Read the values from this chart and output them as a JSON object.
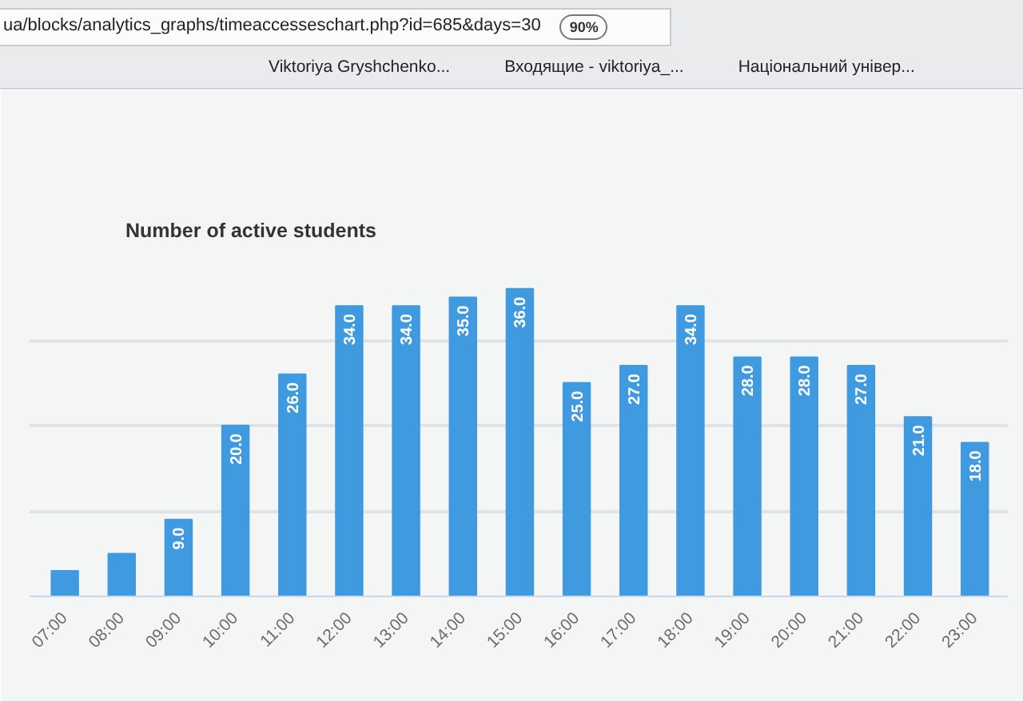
{
  "chart_data": {
    "type": "bar",
    "title": "Number of active students",
    "categories": [
      "07:00",
      "08:00",
      "09:00",
      "10:00",
      "11:00",
      "12:00",
      "13:00",
      "14:00",
      "15:00",
      "16:00",
      "17:00",
      "18:00",
      "19:00",
      "20:00",
      "21:00",
      "22:00",
      "23:00"
    ],
    "values": [
      3,
      5,
      9,
      20,
      26,
      34,
      34,
      35,
      36,
      25,
      27,
      34,
      28,
      28,
      27,
      21,
      18
    ],
    "value_labels": [
      null,
      null,
      "9.0",
      "20.0",
      "26.0",
      "34.0",
      "34.0",
      "35.0",
      "36.0",
      "25.0",
      "27.0",
      "34.0",
      "28.0",
      "28.0",
      "27.0",
      "21.0",
      "18.0"
    ],
    "color": "#3f9ae0",
    "ylim": [
      0,
      40
    ],
    "yticks": [
      {
        "value": 0,
        "label": null
      },
      {
        "value": 10,
        "label": null
      },
      {
        "value": 20,
        "label": null
      },
      {
        "value": 30,
        "label": null
      },
      {
        "value": 40,
        "label": null
      }
    ],
    "tick_labels": "x",
    "grid": "y",
    "annotations": [
      "ua/blocks/analytics_graphs/timeaccesseschart.php?id=685&days=30",
      "90%",
      "Viktoriya Gryshchenko...",
      "Входящие - viktoriya_...",
      "Національний універ..."
    ]
  }
}
